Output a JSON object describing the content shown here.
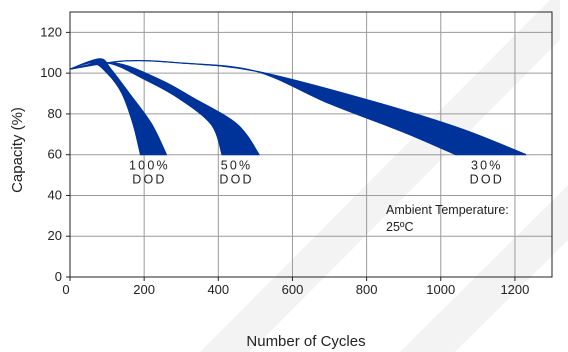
{
  "chart_data": {
    "type": "area",
    "xlabel": "Number of Cycles",
    "ylabel": "Capacity (%)",
    "xlim": [
      0,
      1300
    ],
    "ylim": [
      0,
      130
    ],
    "x_ticks": [
      "0",
      "200",
      "400",
      "600",
      "800",
      "1000",
      "1200"
    ],
    "y_ticks": [
      "0",
      "20",
      "40",
      "60",
      "80",
      "100",
      "120"
    ],
    "grid": true,
    "band_color": "#003399",
    "series": [
      {
        "labels": [
          "100%",
          "DOD"
        ],
        "upper": [
          [
            0,
            102
          ],
          [
            80,
            107
          ],
          [
            110,
            102
          ],
          [
            160,
            90
          ],
          [
            220,
            75
          ],
          [
            260,
            60
          ]
        ],
        "lower": [
          [
            0,
            102
          ],
          [
            60,
            105
          ],
          [
            100,
            100
          ],
          [
            140,
            90
          ],
          [
            170,
            75
          ],
          [
            190,
            60
          ]
        ]
      },
      {
        "labels": [
          "50%",
          "DOD"
        ],
        "upper": [
          [
            0,
            102
          ],
          [
            120,
            105
          ],
          [
            240,
            97
          ],
          [
            330,
            88
          ],
          [
            450,
            75
          ],
          [
            510,
            60
          ]
        ],
        "lower": [
          [
            0,
            102
          ],
          [
            100,
            105
          ],
          [
            200,
            97
          ],
          [
            290,
            88
          ],
          [
            380,
            75
          ],
          [
            410,
            60
          ]
        ]
      },
      {
        "labels": [
          "30%",
          "DOD"
        ],
        "upper": [
          [
            0,
            102
          ],
          [
            150,
            106
          ],
          [
            300,
            105
          ],
          [
            500,
            101
          ],
          [
            800,
            87
          ],
          [
            1050,
            73
          ],
          [
            1230,
            60
          ]
        ],
        "lower": [
          [
            0,
            102
          ],
          [
            150,
            106
          ],
          [
            300,
            105
          ],
          [
            500,
            101
          ],
          [
            700,
            85
          ],
          [
            900,
            71
          ],
          [
            1040,
            60
          ]
        ]
      }
    ],
    "annotations": [
      "Ambient Temperature:",
      "25ºC"
    ]
  }
}
